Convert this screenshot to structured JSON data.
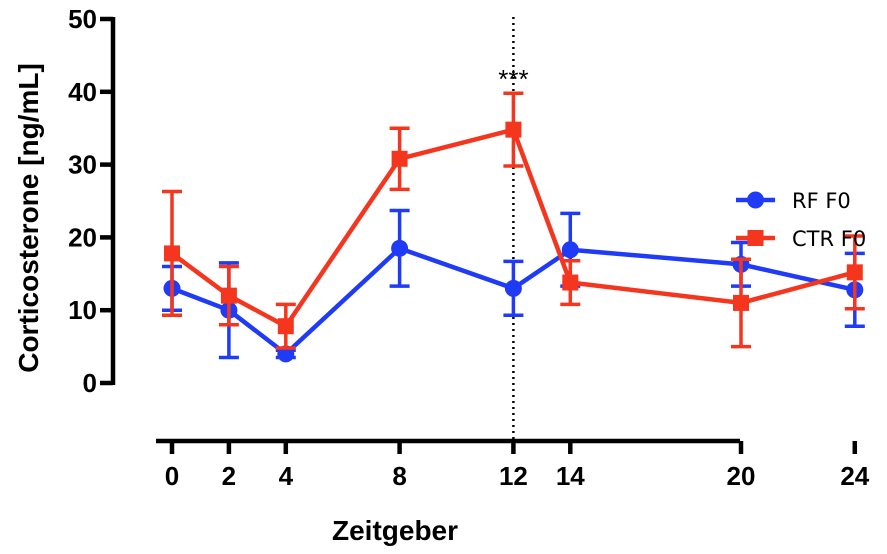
{
  "chart_data": {
    "type": "line",
    "title": "",
    "xlabel": "Zeitgeber",
    "ylabel": "Corticosterone [ng/mL]",
    "ylim": [
      0,
      50
    ],
    "yticks": [
      0,
      10,
      20,
      30,
      40,
      50
    ],
    "xlim": [
      0,
      30
    ],
    "xticks": [
      0,
      2,
      4,
      8,
      12,
      14,
      20,
      24
    ],
    "grid": false,
    "legend_position": "right",
    "reference_line": {
      "x": 12,
      "style": "dotted"
    },
    "annotations": [
      {
        "text": "***",
        "x": 12
      }
    ],
    "series": [
      {
        "name": "RF F0",
        "color": "#1f3bf5",
        "marker": "circle",
        "x": [
          0,
          2,
          4,
          8,
          12,
          14,
          20,
          24
        ],
        "y": [
          13.0,
          10.0,
          4.0,
          18.5,
          13.0,
          18.3,
          16.3,
          12.8
        ],
        "err": [
          3.0,
          6.5,
          0.5,
          5.2,
          3.7,
          5.0,
          3.0,
          5.0
        ]
      },
      {
        "name": "CTR F0",
        "color": "#f5361f",
        "marker": "square",
        "x": [
          0,
          2,
          4,
          8,
          12,
          14,
          20,
          24
        ],
        "y": [
          17.8,
          12.0,
          7.8,
          30.8,
          34.8,
          13.8,
          11.0,
          15.2
        ],
        "err": [
          8.5,
          4.0,
          3.0,
          4.2,
          5.0,
          3.0,
          6.0,
          5.0
        ]
      }
    ]
  }
}
